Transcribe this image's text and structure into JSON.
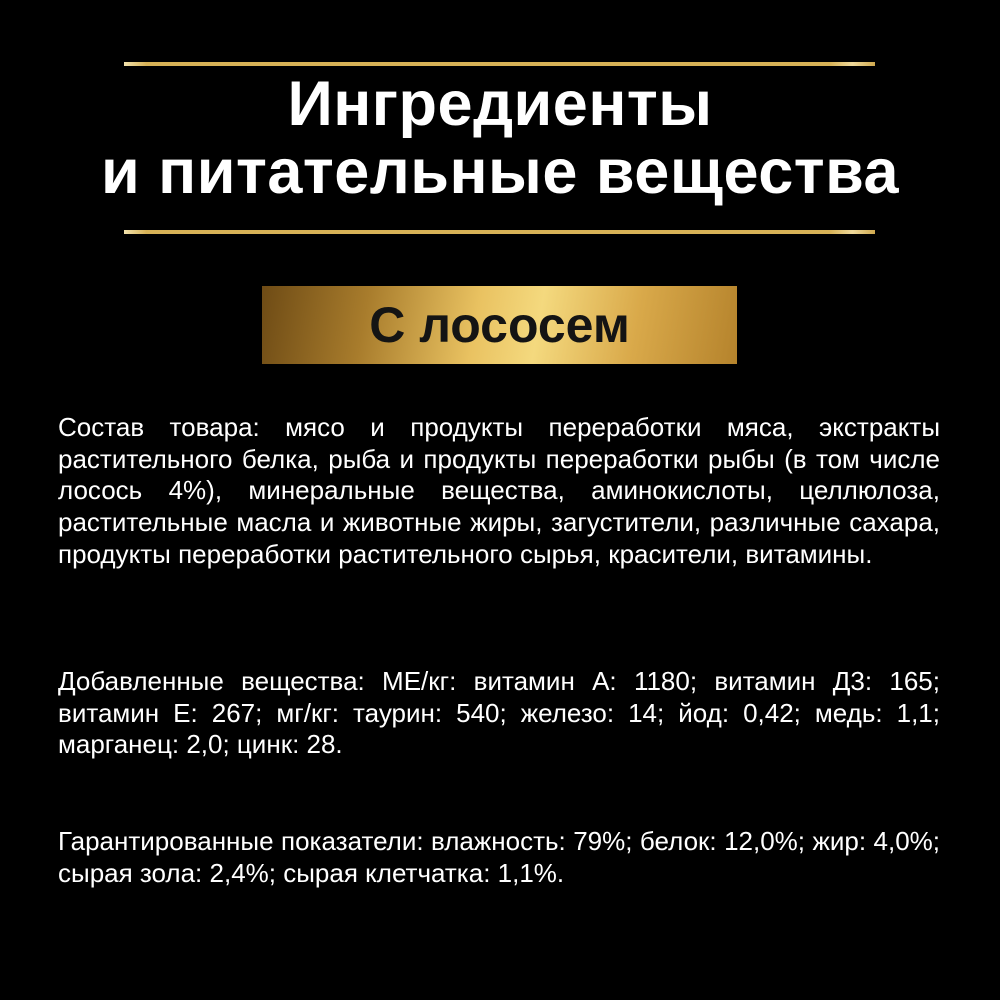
{
  "title": {
    "line1": "Ингредиенты",
    "line2": "и питательные вещества"
  },
  "banner": {
    "label": "С лососем"
  },
  "paragraphs": {
    "composition": "Состав товара: мясо и продукты переработки мяса, экстракты растительного белка, рыба и продукты переработки рыбы (в том числе лосось 4%), минеральные вещества, аминокислоты, целлюлоза, растительные масла и животные жиры, загустители, различные сахара, продукты переработки растительного сырья, красители, витамины.",
    "additives": "Добавленные вещества: МЕ/кг: витамин А: 1180; витамин Д3: 165; витамин Е: 267; мг/кг: таурин: 540; железо: 14; йод: 0,42; медь: 1,1; марганец: 2,0; цинк: 28.",
    "guaranteed": "Гарантированные показатели: влажность: 79%; белок: 12,0%; жир: 4,0%; сырая зола: 2,4%; сырая клетчатка: 1,1%."
  },
  "colors": {
    "background": "#000000",
    "text": "#ffffff",
    "gold_rule": "#d7b256",
    "banner_text": "#141414",
    "banner_gradient": [
      "#6e4b15",
      "#a87c2c",
      "#e9c261",
      "#f4d97e",
      "#d9a94a",
      "#b5832c"
    ]
  }
}
